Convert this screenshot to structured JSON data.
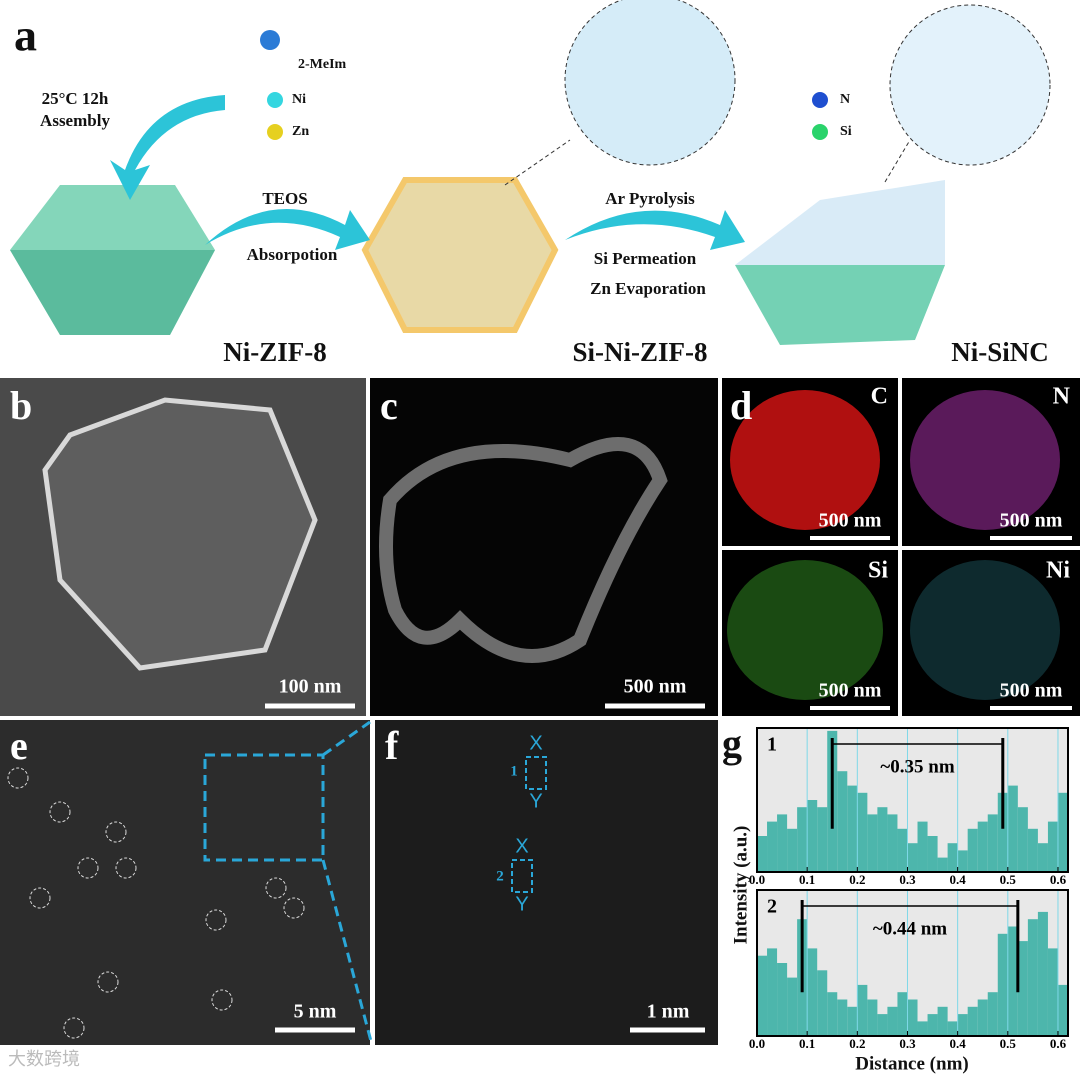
{
  "panel_a": {
    "label": "a",
    "legend": [
      "2-MeIm",
      "Ni",
      "Zn",
      "N",
      "Si"
    ],
    "step1": [
      "25°C 12h",
      "Assembly"
    ],
    "step2": [
      "TEOS",
      "Absorpotion"
    ],
    "step3": [
      "Ar Pyrolysis",
      "Si Permeation",
      "Zn Evaporation"
    ],
    "products": [
      "Ni-ZIF-8",
      "Si-Ni-ZIF-8",
      "Ni-SiNC"
    ]
  },
  "panel_b": {
    "label": "b",
    "scale_bar": "100 nm"
  },
  "panel_c": {
    "label": "c",
    "scale_bar": "500 nm"
  },
  "panel_d": {
    "label": "d",
    "maps": [
      {
        "element": "C",
        "scale_bar": "500 nm"
      },
      {
        "element": "N",
        "scale_bar": "500 nm"
      },
      {
        "element": "Si",
        "scale_bar": "500 nm"
      },
      {
        "element": "Ni",
        "scale_bar": "500 nm"
      }
    ]
  },
  "panel_e": {
    "label": "e",
    "scale_bar": "5 nm"
  },
  "panel_f": {
    "label": "f",
    "sites": [
      {
        "id": "1",
        "ends": [
          "X",
          "Y"
        ]
      },
      {
        "id": "2",
        "ends": [
          "X",
          "Y"
        ]
      }
    ],
    "scale_bar": "1 nm"
  },
  "panel_g": {
    "label": "g",
    "y_label": "Intensity (a.u.)",
    "x_label": "Distance (nm)",
    "charts": [
      {
        "type": "histogram",
        "title": "1",
        "annotation": "~0.35 nm",
        "markers": [
          0.15,
          0.49
        ],
        "bins": [
          0,
          0.02,
          0.04,
          0.06,
          0.08,
          0.1,
          0.12,
          0.14,
          0.16,
          0.18,
          0.2,
          0.22,
          0.24,
          0.26,
          0.28,
          0.3,
          0.32,
          0.34,
          0.36,
          0.38,
          0.4,
          0.42,
          0.44,
          0.46,
          0.48,
          0.5,
          0.52,
          0.54,
          0.56,
          0.58,
          0.6,
          0.62
        ],
        "counts": [
          0.25,
          0.35,
          0.4,
          0.3,
          0.45,
          0.5,
          0.45,
          0.98,
          0.7,
          0.6,
          0.55,
          0.4,
          0.45,
          0.4,
          0.3,
          0.2,
          0.35,
          0.25,
          0.1,
          0.2,
          0.15,
          0.3,
          0.35,
          0.4,
          0.55,
          0.6,
          0.45,
          0.3,
          0.2,
          0.35,
          0.55
        ],
        "color": "#4db6ac",
        "xlim": [
          0,
          0.62
        ],
        "ylim": [
          0,
          1
        ],
        "xticks": [
          {
            "value": 0,
            "label": "0.0"
          },
          0.1,
          0.2,
          0.3,
          0.4,
          0.5,
          0.6
        ],
        "grid": true
      },
      {
        "type": "histogram",
        "title": "2",
        "annotation": "~0.44 nm",
        "markers": [
          0.09,
          0.52
        ],
        "bins": [
          0,
          0.02,
          0.04,
          0.06,
          0.08,
          0.1,
          0.12,
          0.14,
          0.16,
          0.18,
          0.2,
          0.22,
          0.24,
          0.26,
          0.28,
          0.3,
          0.32,
          0.34,
          0.36,
          0.38,
          0.4,
          0.42,
          0.44,
          0.46,
          0.48,
          0.5,
          0.52,
          0.54,
          0.56,
          0.58,
          0.6,
          0.62
        ],
        "counts": [
          0.55,
          0.6,
          0.5,
          0.4,
          0.8,
          0.6,
          0.45,
          0.3,
          0.25,
          0.2,
          0.35,
          0.25,
          0.15,
          0.2,
          0.3,
          0.25,
          0.1,
          0.15,
          0.2,
          0.1,
          0.15,
          0.2,
          0.25,
          0.3,
          0.7,
          0.75,
          0.65,
          0.8,
          0.85,
          0.6,
          0.35
        ],
        "color": "#4db6ac",
        "xlim": [
          0,
          0.62
        ],
        "ylim": [
          0,
          1
        ],
        "xticks": [
          {
            "value": 0,
            "label": "0.0"
          },
          0.1,
          0.2,
          0.3,
          0.4,
          0.5,
          0.6
        ],
        "grid": true
      }
    ]
  },
  "watermark": "大数跨境"
}
